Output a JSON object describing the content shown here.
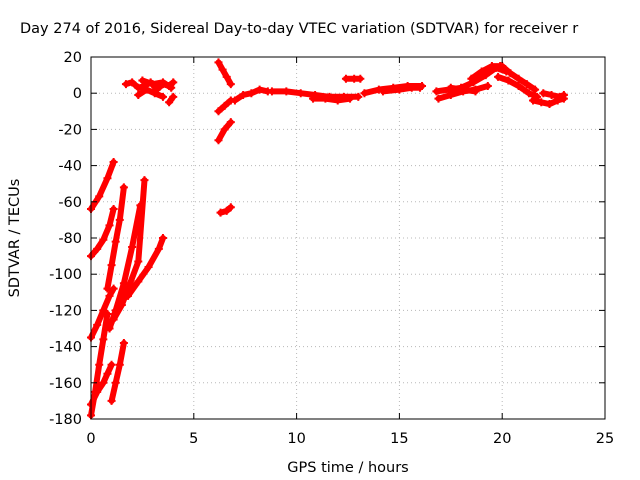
{
  "chart_data": {
    "type": "scatter",
    "title": "Day 274 of 2016, Sidereal Day-to-day VTEC variation (SDTVAR) for receiver r",
    "xlabel": "GPS time / hours",
    "ylabel": "SDTVAR / TECUs",
    "xlim": [
      0,
      25
    ],
    "ylim": [
      -180,
      20
    ],
    "xticks": [
      0,
      5,
      10,
      15,
      20,
      25
    ],
    "yticks": [
      -180,
      -160,
      -140,
      -120,
      -100,
      -80,
      -60,
      -40,
      -20,
      0,
      20
    ],
    "grid": true,
    "legend": "none",
    "marker": "plus",
    "color": "#ff0000",
    "series": [
      {
        "x": [
          0.0,
          0.4,
          0.8,
          1.1
        ],
        "y": [
          -64,
          -57,
          -47,
          -38
        ]
      },
      {
        "x": [
          0.0,
          0.3,
          0.6,
          0.9,
          1.1
        ],
        "y": [
          -90,
          -86,
          -81,
          -73,
          -64
        ]
      },
      {
        "x": [
          0.0,
          0.3,
          0.6,
          0.9,
          1.1
        ],
        "y": [
          -135,
          -128,
          -120,
          -112,
          -108
        ]
      },
      {
        "x": [
          0.0,
          0.2,
          0.4,
          0.6,
          0.8
        ],
        "y": [
          -178,
          -165,
          -150,
          -136,
          -122
        ]
      },
      {
        "x": [
          0.8,
          1.0,
          1.2,
          1.4,
          1.6
        ],
        "y": [
          -108,
          -95,
          -82,
          -70,
          -52
        ]
      },
      {
        "x": [
          0.9,
          1.2,
          1.6,
          2.0,
          2.4
        ],
        "y": [
          -130,
          -120,
          -105,
          -85,
          -62
        ]
      },
      {
        "x": [
          1.1,
          1.5,
          1.9,
          2.3,
          2.6
        ],
        "y": [
          -125,
          -117,
          -105,
          -93,
          -48
        ]
      },
      {
        "x": [
          1.8,
          2.3,
          2.8,
          3.3,
          3.5
        ],
        "y": [
          -112,
          -104,
          -96,
          -86,
          -80
        ]
      },
      {
        "x": [
          0.0,
          0.3,
          0.6,
          0.8,
          1.0
        ],
        "y": [
          -172,
          -165,
          -160,
          -155,
          -150
        ]
      },
      {
        "x": [
          1.0,
          1.2,
          1.4,
          1.6
        ],
        "y": [
          -170,
          -160,
          -150,
          -138
        ]
      },
      {
        "x": [
          1.7,
          2.0,
          2.3,
          2.6,
          2.9,
          3.2,
          3.5,
          3.8,
          4.0
        ],
        "y": [
          5,
          6,
          3,
          4,
          6,
          2,
          5,
          4,
          6
        ]
      },
      {
        "x": [
          2.3,
          2.7,
          3.1,
          3.5
        ],
        "y": [
          -1,
          2,
          0,
          -2
        ]
      },
      {
        "x": [
          2.5,
          3.0,
          3.5,
          3.9
        ],
        "y": [
          7,
          5,
          6,
          3
        ]
      },
      {
        "x": [
          3.8,
          4.0
        ],
        "y": [
          -5,
          -2
        ]
      },
      {
        "x": [
          6.2,
          6.4,
          6.6,
          6.8
        ],
        "y": [
          17,
          13,
          9,
          5
        ]
      },
      {
        "x": [
          6.2,
          6.5,
          6.8
        ],
        "y": [
          -26,
          -20,
          -16
        ]
      },
      {
        "x": [
          6.2,
          6.5,
          6.8
        ],
        "y": [
          -10,
          -7,
          -4
        ]
      },
      {
        "x": [
          6.3,
          6.6,
          6.8
        ],
        "y": [
          -66,
          -65,
          -63
        ]
      },
      {
        "x": [
          7.0,
          7.4,
          7.8,
          8.2,
          8.6
        ],
        "y": [
          -4,
          -1,
          0,
          2,
          1
        ]
      },
      {
        "x": [
          8.8,
          9.5,
          10.2,
          10.9,
          11.6,
          12.3,
          13.0
        ],
        "y": [
          1,
          1,
          0,
          -1,
          -2,
          -2,
          -2
        ]
      },
      {
        "x": [
          10.8,
          11.4,
          12.0,
          12.6
        ],
        "y": [
          -3,
          -3,
          -4,
          -3
        ]
      },
      {
        "x": [
          12.4,
          12.8,
          13.1
        ],
        "y": [
          8,
          8,
          8
        ]
      },
      {
        "x": [
          13.3,
          14.0,
          14.7,
          15.4,
          16.1
        ],
        "y": [
          0,
          2,
          3,
          4,
          4
        ]
      },
      {
        "x": [
          14.2,
          15.0,
          15.6,
          16.0
        ],
        "y": [
          1,
          2,
          3,
          3
        ]
      },
      {
        "x": [
          16.8,
          17.4,
          18.0,
          18.6,
          19.2,
          19.7,
          20.2
        ],
        "y": [
          1,
          2,
          3,
          6,
          10,
          14,
          12
        ]
      },
      {
        "x": [
          16.9,
          17.5,
          18.1,
          18.7,
          19.3
        ],
        "y": [
          -3,
          -1,
          1,
          2,
          4
        ]
      },
      {
        "x": [
          17.5,
          18.1,
          18.7
        ],
        "y": [
          3,
          2,
          1
        ]
      },
      {
        "x": [
          18.5,
          19.0,
          19.5,
          19.9
        ],
        "y": [
          8,
          12,
          15,
          15
        ]
      },
      {
        "x": [
          19.8,
          20.3,
          20.8,
          21.3,
          21.7
        ],
        "y": [
          9,
          7,
          4,
          0,
          -2
        ]
      },
      {
        "x": [
          20.0,
          20.4,
          20.8,
          21.2,
          21.6
        ],
        "y": [
          15,
          11,
          8,
          5,
          2
        ]
      },
      {
        "x": [
          21.5,
          21.9,
          22.3,
          22.7,
          23.0
        ],
        "y": [
          -4,
          -5,
          -6,
          -4,
          -3
        ]
      },
      {
        "x": [
          22.0,
          22.4,
          22.8,
          23.0
        ],
        "y": [
          0,
          -1,
          -2,
          -1
        ]
      }
    ]
  }
}
